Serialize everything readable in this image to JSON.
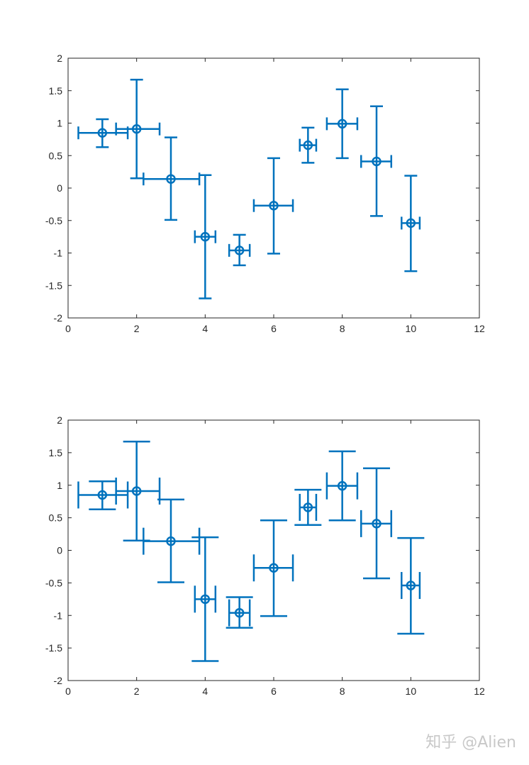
{
  "chart_data": [
    {
      "type": "errorbar",
      "xlim": [
        0,
        12
      ],
      "ylim": [
        -2,
        2
      ],
      "xticks": [
        "0",
        "2",
        "4",
        "6",
        "8",
        "10",
        "12"
      ],
      "yticks": [
        "2",
        "1.5",
        "1",
        "0.5",
        "0",
        "-0.5",
        "-1",
        "-1.5",
        "-2"
      ],
      "color": "#0072BD",
      "marker": "circle",
      "cap_style": "small",
      "points": [
        {
          "x": 1,
          "y": 0.85,
          "ylow": 0.63,
          "yhigh": 1.06,
          "xlow": 0.3,
          "xhigh": 1.74
        },
        {
          "x": 2,
          "y": 0.91,
          "ylow": 0.15,
          "yhigh": 1.67,
          "xlow": 1.4,
          "xhigh": 2.67
        },
        {
          "x": 3,
          "y": 0.14,
          "ylow": -0.49,
          "yhigh": 0.78,
          "xlow": 2.2,
          "xhigh": 3.83
        },
        {
          "x": 4,
          "y": -0.75,
          "ylow": -1.7,
          "yhigh": 0.2,
          "xlow": 3.7,
          "xhigh": 4.3
        },
        {
          "x": 5,
          "y": -0.96,
          "ylow": -1.19,
          "yhigh": -0.72,
          "xlow": 4.7,
          "xhigh": 5.3
        },
        {
          "x": 6,
          "y": -0.27,
          "ylow": -1.01,
          "yhigh": 0.46,
          "xlow": 5.42,
          "xhigh": 6.56
        },
        {
          "x": 7,
          "y": 0.66,
          "ylow": 0.39,
          "yhigh": 0.93,
          "xlow": 6.76,
          "xhigh": 7.24
        },
        {
          "x": 8,
          "y": 0.99,
          "ylow": 0.46,
          "yhigh": 1.52,
          "xlow": 7.55,
          "xhigh": 8.44
        },
        {
          "x": 9,
          "y": 0.41,
          "ylow": -0.43,
          "yhigh": 1.26,
          "xlow": 8.55,
          "xhigh": 9.43
        },
        {
          "x": 10,
          "y": -0.54,
          "ylow": -1.28,
          "yhigh": 0.19,
          "xlow": 9.73,
          "xhigh": 10.26
        }
      ]
    },
    {
      "type": "errorbar",
      "xlim": [
        0,
        12
      ],
      "ylim": [
        -2,
        2
      ],
      "xticks": [
        "0",
        "2",
        "4",
        "6",
        "8",
        "10",
        "12"
      ],
      "yticks": [
        "2",
        "1.5",
        "1",
        "0.5",
        "0",
        "-0.5",
        "-1",
        "-1.5",
        "-2"
      ],
      "color": "#0072BD",
      "marker": "circle",
      "cap_style": "large",
      "points": [
        {
          "x": 1,
          "y": 0.85,
          "ylow": 0.63,
          "yhigh": 1.06,
          "xlow": 0.3,
          "xhigh": 1.74
        },
        {
          "x": 2,
          "y": 0.91,
          "ylow": 0.15,
          "yhigh": 1.67,
          "xlow": 1.4,
          "xhigh": 2.67
        },
        {
          "x": 3,
          "y": 0.14,
          "ylow": -0.49,
          "yhigh": 0.78,
          "xlow": 2.2,
          "xhigh": 3.83
        },
        {
          "x": 4,
          "y": -0.75,
          "ylow": -1.7,
          "yhigh": 0.2,
          "xlow": 3.7,
          "xhigh": 4.3
        },
        {
          "x": 5,
          "y": -0.96,
          "ylow": -1.19,
          "yhigh": -0.72,
          "xlow": 4.7,
          "xhigh": 5.3
        },
        {
          "x": 6,
          "y": -0.27,
          "ylow": -1.01,
          "yhigh": 0.46,
          "xlow": 5.42,
          "xhigh": 6.56
        },
        {
          "x": 7,
          "y": 0.66,
          "ylow": 0.39,
          "yhigh": 0.93,
          "xlow": 6.76,
          "xhigh": 7.24
        },
        {
          "x": 8,
          "y": 0.99,
          "ylow": 0.46,
          "yhigh": 1.52,
          "xlow": 7.55,
          "xhigh": 8.44
        },
        {
          "x": 9,
          "y": 0.41,
          "ylow": -0.43,
          "yhigh": 1.26,
          "xlow": 8.55,
          "xhigh": 9.43
        },
        {
          "x": 10,
          "y": -0.54,
          "ylow": -1.28,
          "yhigh": 0.19,
          "xlow": 9.73,
          "xhigh": 10.26
        }
      ]
    }
  ],
  "watermark": "知乎 @Alien"
}
